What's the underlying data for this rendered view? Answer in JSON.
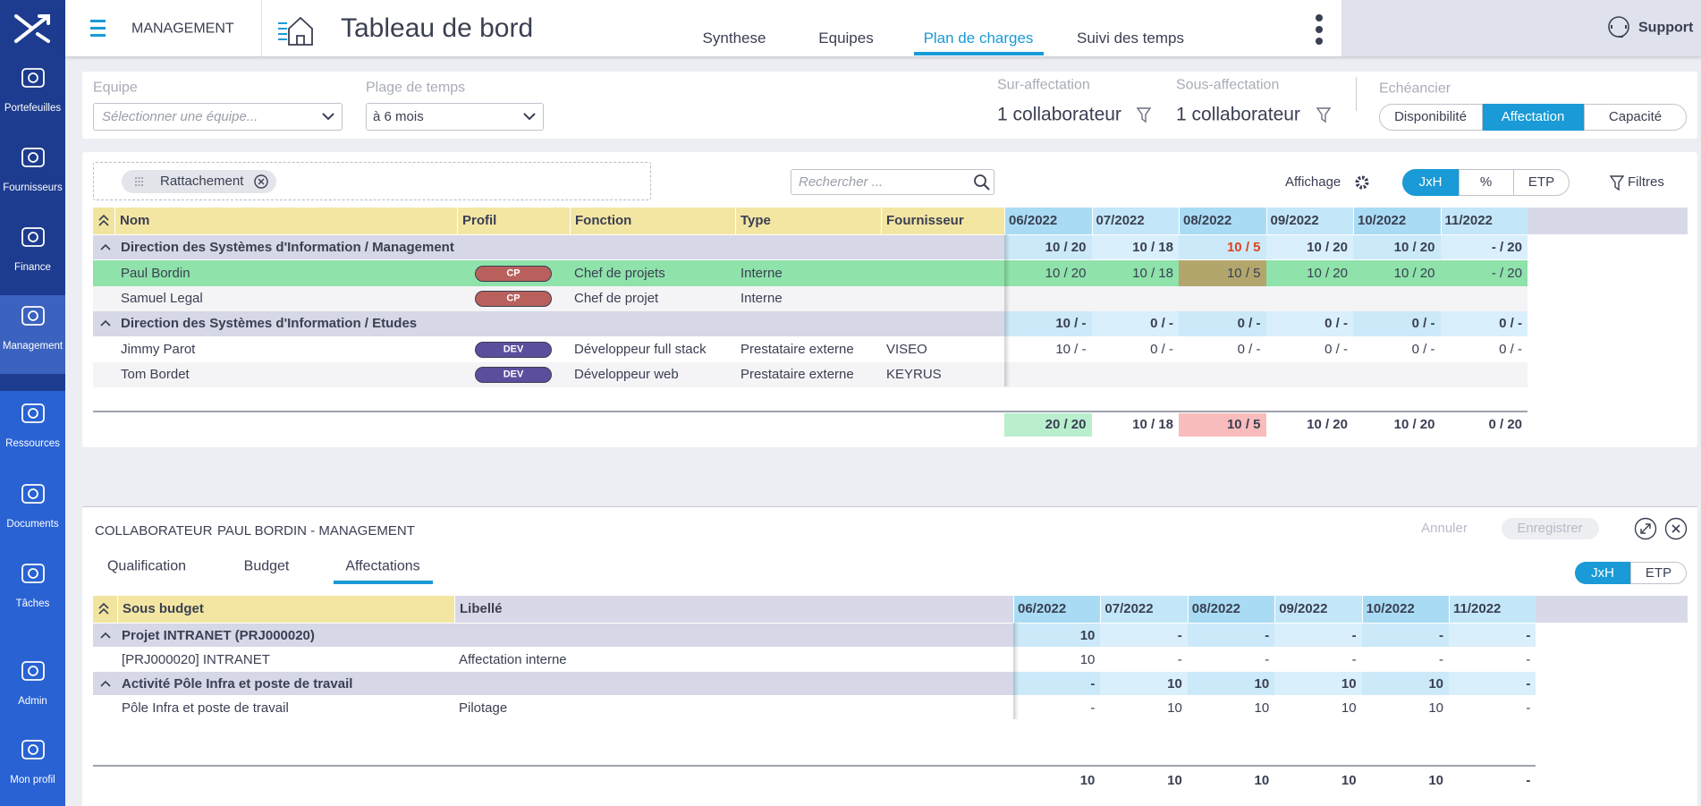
{
  "sidebar": {
    "items": [
      "Portefeuilles",
      "Fournisseurs",
      "Finance",
      "Management",
      "Ressources",
      "Documents",
      "Tâches",
      "Admin",
      "Mon profil"
    ],
    "active": 3
  },
  "topbar": {
    "module": "MANAGEMENT",
    "title": "Tableau de bord",
    "tabs": [
      "Synthese",
      "Equipes",
      "Plan de charges",
      "Suivi des temps"
    ],
    "active_tab": 2,
    "support": "Support"
  },
  "filters": {
    "equipe": {
      "label": "Equipe",
      "placeholder": "Sélectionner une équipe..."
    },
    "plage": {
      "label": "Plage de temps",
      "value": "à 6 mois"
    },
    "sur_affectation": {
      "label": "Sur-affectation",
      "value": "1 collaborateur"
    },
    "sous_affectation": {
      "label": "Sous-affectation",
      "value": "1 collaborateur"
    },
    "echeancier": {
      "label": "Echéancier",
      "options": [
        "Disponibilité",
        "Affectation",
        "Capacité"
      ],
      "active": 1
    }
  },
  "toolbar": {
    "chip": "Rattachement",
    "search_placeholder": "Rechercher ...",
    "affichage": "Affichage",
    "display_options": [
      "JxH",
      "%",
      "ETP"
    ],
    "active": 0,
    "filtres": "Filtres"
  },
  "grid": {
    "columns": [
      "Nom",
      "Profil",
      "Fonction",
      "Type",
      "Fournisseur"
    ],
    "header_colors": [
      "#f3e6a3",
      "#f3e6a3",
      "#f3e6a3",
      "#f3e6a3",
      "#f3e6a3"
    ],
    "months": [
      "06/2022",
      "07/2022",
      "08/2022",
      "09/2022",
      "10/2022",
      "11/2022"
    ],
    "rows": [
      {
        "title": "Direction des Systèmes d'Information / Management",
        "cells": [
          "10 / 20",
          "10 / 18",
          "10 / 5",
          "10 / 20",
          "10 / 20",
          "- / 20"
        ],
        "text_colors": [
          null,
          null,
          "#e0421e",
          null,
          null,
          null
        ]
      },
      {
        "nom": "Paul Bordin",
        "profil": "CP",
        "profil_color": "#b9605d",
        "fonction": "Chef de projets",
        "type": "Interne",
        "cells": [
          "10 / 20",
          "10 / 18",
          "10 / 5",
          "10 / 20",
          "10 / 20",
          "- / 20"
        ],
        "color": "#8ee2aa",
        "cell_colors": [
          "#8ee2aa",
          "#8ee2aa",
          "#b3a66d",
          "#8ee2aa",
          "#8ee2aa",
          "#8ee2aa"
        ]
      },
      {
        "nom": "Samuel Legal",
        "profil": "CP",
        "profil_color": "#b9605d",
        "fonction": "Chef de projet",
        "type": "Interne"
      },
      {
        "title": "Direction des Systèmes d'Information / Etudes",
        "cells": [
          "10 / -",
          "0 / -",
          "0 / -",
          "0 / -",
          "0 / -",
          "0 / -"
        ]
      },
      {
        "nom": "Jimmy Parot",
        "profil": "DEV",
        "profil_color": "#5b4f9d",
        "fonction": "Développeur full stack",
        "type": "Prestataire externe",
        "fournisseur": "VISEO",
        "cells": [
          "10 / -",
          "0 / -",
          "0 / -",
          "0 / -",
          "0 / -",
          "0 / -"
        ]
      },
      {
        "nom": "Tom Bordet",
        "profil": "DEV",
        "profil_color": "#5b4f9d",
        "fonction": "Développeur web",
        "type": "Prestataire externe",
        "fournisseur": "KEYRUS"
      }
    ],
    "totals": [
      "20 / 20",
      "10 / 18",
      "10 / 5",
      "10 / 20",
      "10 / 20",
      "0 / 20"
    ],
    "totals_colors": [
      "#b9efcd",
      null,
      "#f9bcbc",
      null,
      null,
      null
    ]
  },
  "detail": {
    "label": "COLLABORATEUR",
    "name": "PAUL BORDIN - MANAGEMENT",
    "annuler": "Annuler",
    "enregistrer": "Enregistrer",
    "tabs": [
      "Qualification",
      "Budget",
      "Affectations"
    ],
    "active_tab": 2,
    "units": [
      "JxH",
      "ETP"
    ],
    "active_unit": 0,
    "table": {
      "columns": [
        "Sous budget",
        "Libellé"
      ],
      "header_colors": [
        "#f3e6a3",
        "#d8d8e8"
      ],
      "months": [
        "06/2022",
        "07/2022",
        "08/2022",
        "09/2022",
        "10/2022",
        "11/2022"
      ],
      "rows": [
        {
          "title": "Projet INTRANET (PRJ000020)",
          "cells": [
            "10",
            "-",
            "-",
            "-",
            "-",
            "-"
          ]
        },
        {
          "nom": "[PRJ000020] INTRANET",
          "libelle": "Affectation interne",
          "cells": [
            "10",
            "-",
            "-",
            "-",
            "-",
            "-"
          ]
        },
        {
          "title": "Activité Pôle Infra et poste de travail",
          "cells": [
            "-",
            "10",
            "10",
            "10",
            "10",
            "-"
          ]
        },
        {
          "nom": "Pôle Infra et poste de travail",
          "libelle": "Pilotage",
          "cells": [
            "-",
            "10",
            "10",
            "10",
            "10",
            "-"
          ]
        }
      ],
      "totals": [
        "10",
        "10",
        "10",
        "10",
        "10",
        "-"
      ]
    }
  }
}
